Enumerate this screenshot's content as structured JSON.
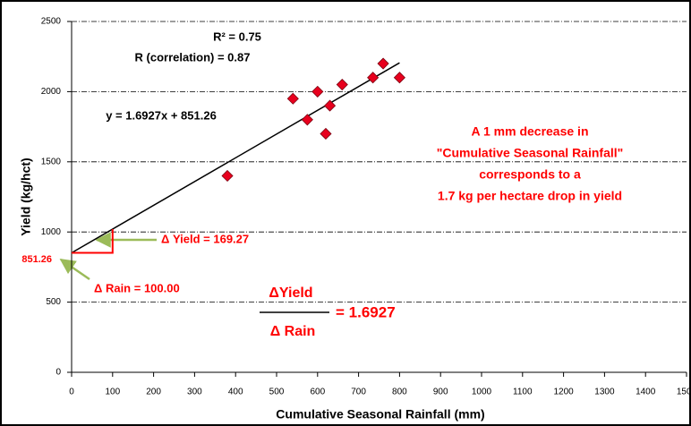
{
  "chart_data": {
    "type": "scatter",
    "x_label": "Cumulative Seasonal Rainfall (mm)",
    "y_label": "Yield (kg/hct)",
    "x": [
      380,
      540,
      575,
      600,
      620,
      630,
      660,
      735,
      760,
      800
    ],
    "values": [
      1400,
      1950,
      1800,
      2000,
      1700,
      1900,
      2050,
      2100,
      2200,
      2100
    ],
    "color": "#e8001e",
    "xlim": [
      0,
      1500
    ],
    "ylim": [
      0,
      2500
    ],
    "xticks": [
      0,
      100,
      200,
      300,
      400,
      500,
      600,
      700,
      800,
      900,
      1000,
      1100,
      1200,
      1300,
      1400,
      1500
    ],
    "yticks": [
      0,
      500,
      1000,
      1500,
      2000,
      2500
    ],
    "grid": true,
    "trendline": {
      "slope": 1.6927,
      "intercept": 851.26,
      "label": "y = 1.6927x + 851.26"
    },
    "annotations": {
      "r_squared": "R² = 0.75",
      "correlation": "R (correlation) = 0.87",
      "intercept_label": "851.26",
      "delta_yield": "Δ Yield = 169.27",
      "delta_rain": "Δ Rain = 100.00",
      "fraction_top": "ΔYield",
      "fraction_bottom": "Δ Rain",
      "fraction_result": "= 1.6927",
      "note": [
        "A 1 mm decrease in",
        "\"Cumulative Seasonal Rainfall\"",
        "corresponds to a",
        "1.7 kg per hectare drop in yield"
      ]
    }
  }
}
